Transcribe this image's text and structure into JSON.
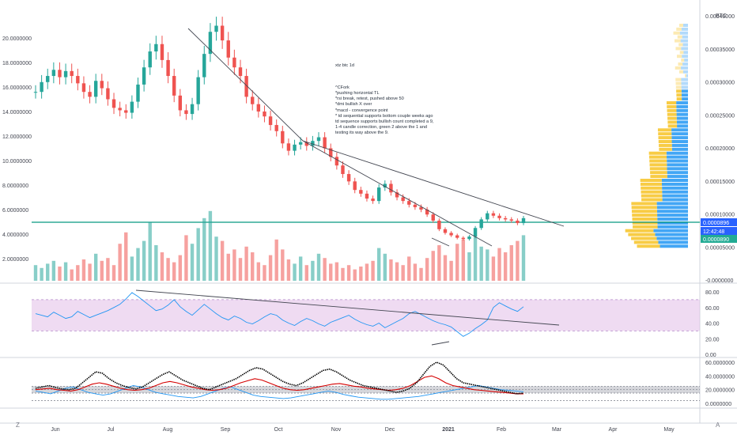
{
  "chart_data": {
    "type": "candlestick",
    "ticker_note": "xtz btc 1d",
    "notes": [
      "^CFork",
      "*pushing horizontal TL",
      "*rsi break, retest, pushed above 50",
      "*dmi bullish X over",
      "*macd - convergence point",
      "* td sequential supports bottom couple weeks ago",
      "td sequence supports bullish count completed a 9,",
      "1-4 candle correction, green 2 above the 1 and",
      "testing its way above the 9."
    ],
    "price_axis_labels": [
      "20.0000000",
      "18.0000000",
      "16.0000000",
      "14.0000000",
      "12.0000000",
      "10.0000000",
      "8.0000000",
      "6.0000000",
      "4.0000000",
      "2.0000000"
    ],
    "right_axis_unit": "BTC",
    "right_axis_labels": [
      "0.00040000",
      "0.00035000",
      "0.00030000",
      "0.00025000",
      "0.00020000",
      "0.00015000",
      "0.00010000",
      "0.00005000",
      "-0.0000000"
    ],
    "price_tags": [
      {
        "text": "0.0000896",
        "color": "#2962ff"
      },
      {
        "text": "12:42:48",
        "color": "#2962ff"
      },
      {
        "text": "0.0000890",
        "color": "#22ab94"
      }
    ],
    "time_labels": [
      "Jun",
      "Jul",
      "Aug",
      "Sep",
      "Oct",
      "Nov",
      "Dec",
      "2021",
      "Feb",
      "Mar",
      "Apr",
      "May"
    ],
    "rsi_axis_labels": [
      "80.00",
      "60.00",
      "40.00",
      "20.00",
      "0.00"
    ],
    "dmi_axis_labels": [
      "60.0000000",
      "40.0000000",
      "20.0000000",
      "0.0000000"
    ],
    "price_path": [
      15.6,
      16.4,
      16.9,
      17.4,
      16.8,
      17.3,
      16.9,
      16.3,
      15.6,
      15.2,
      16.5,
      15.9,
      15.0,
      14.3,
      14.1,
      13.9,
      14.8,
      16.2,
      17.6,
      18.9,
      19.5,
      18.2,
      16.9,
      15.3,
      14.1,
      13.8,
      14.6,
      16.8,
      18.7,
      20.5,
      21.0,
      19.8,
      18.4,
      17.6,
      16.9,
      15.2,
      14.6,
      14.0,
      13.6,
      12.9,
      12.4,
      11.4,
      10.8,
      11.3,
      11.5,
      11.2,
      11.6,
      11.9,
      11.0,
      10.3,
      9.6,
      8.9,
      8.3,
      7.6,
      7.3,
      6.9,
      6.7,
      7.8,
      8.1,
      7.4,
      7.0,
      6.7,
      6.4,
      6.2,
      6.0,
      5.6,
      5.1,
      4.4,
      4.1,
      3.9,
      3.7,
      3.6,
      3.8,
      4.5,
      5.2,
      5.7,
      5.5,
      5.3,
      5.2,
      5.1,
      4.9,
      5.3
    ],
    "volume_path": [
      1.1,
      0.9,
      1.2,
      1.4,
      1.0,
      1.3,
      0.8,
      1.1,
      1.5,
      1.2,
      1.9,
      1.4,
      1.6,
      1.1,
      2.6,
      3.4,
      1.7,
      2.3,
      2.8,
      4.1,
      2.5,
      2.0,
      1.6,
      1.3,
      1.8,
      3.2,
      2.6,
      3.7,
      4.4,
      4.9,
      3.1,
      2.8,
      1.9,
      2.2,
      1.6,
      2.4,
      2.0,
      1.3,
      1.1,
      1.8,
      2.9,
      2.2,
      1.5,
      1.2,
      1.7,
      1.1,
      1.4,
      1.9,
      1.6,
      1.2,
      1.3,
      0.9,
      1.1,
      0.8,
      1.0,
      1.2,
      1.4,
      2.3,
      1.9,
      1.5,
      1.3,
      1.1,
      1.7,
      1.2,
      0.9,
      1.6,
      2.1,
      2.5,
      1.8,
      1.4,
      2.6,
      2.9,
      2.0,
      3.1,
      2.4,
      2.2,
      1.7,
      2.3,
      2.0,
      2.5,
      2.8,
      3.2
    ],
    "rsi_path": [
      52,
      50,
      48,
      54,
      50,
      46,
      48,
      55,
      51,
      47,
      50,
      53,
      56,
      60,
      64,
      71,
      79,
      74,
      68,
      62,
      56,
      58,
      63,
      70,
      61,
      55,
      50,
      57,
      64,
      58,
      52,
      47,
      44,
      49,
      46,
      41,
      39,
      43,
      48,
      52,
      50,
      44,
      40,
      37,
      42,
      46,
      43,
      39,
      36,
      41,
      44,
      47,
      50,
      45,
      41,
      38,
      36,
      40,
      34,
      38,
      42,
      46,
      52,
      55,
      51,
      47,
      43,
      40,
      38,
      35,
      29,
      23,
      27,
      33,
      38,
      44,
      60,
      66,
      62,
      58,
      55,
      61
    ],
    "dmi_black": [
      22,
      24,
      26,
      23,
      21,
      20,
      22,
      30,
      38,
      46,
      44,
      36,
      30,
      26,
      23,
      21,
      24,
      30,
      36,
      42,
      46,
      40,
      34,
      30,
      26,
      22,
      20,
      24,
      28,
      32,
      36,
      42,
      48,
      52,
      50,
      44,
      38,
      32,
      28,
      26,
      30,
      36,
      42,
      48,
      50,
      46,
      40,
      34,
      30,
      26,
      24,
      22,
      20,
      18,
      16,
      18,
      22,
      30,
      42,
      54,
      60,
      56,
      46,
      36,
      30,
      28,
      26,
      24,
      22,
      20,
      18,
      16,
      14,
      15
    ],
    "dmi_red": [
      20,
      21,
      22,
      20,
      19,
      18,
      20,
      24,
      28,
      30,
      28,
      25,
      22,
      20,
      19,
      20,
      22,
      26,
      30,
      32,
      30,
      27,
      24,
      22,
      20,
      19,
      20,
      22,
      26,
      30,
      33,
      36,
      34,
      30,
      26,
      22,
      20,
      19,
      20,
      22,
      24,
      26,
      28,
      29,
      27,
      25,
      24,
      22,
      21,
      20,
      19,
      20,
      22,
      26,
      32,
      38,
      40,
      36,
      30,
      26,
      24,
      22,
      20,
      19,
      18,
      17,
      16,
      15,
      14,
      14
    ],
    "dmi_blue": [
      18,
      16,
      14,
      18,
      22,
      24,
      20,
      16,
      14,
      12,
      14,
      18,
      22,
      26,
      24,
      20,
      16,
      14,
      12,
      10,
      9,
      8,
      10,
      14,
      18,
      22,
      24,
      20,
      16,
      12,
      10,
      9,
      8,
      7,
      8,
      10,
      12,
      14,
      16,
      18,
      16,
      13,
      11,
      9,
      8,
      7,
      6,
      6,
      7,
      8,
      9,
      10,
      12,
      14,
      16,
      18,
      20,
      22,
      24,
      26,
      24,
      22,
      20,
      19,
      18,
      17
    ]
  }
}
